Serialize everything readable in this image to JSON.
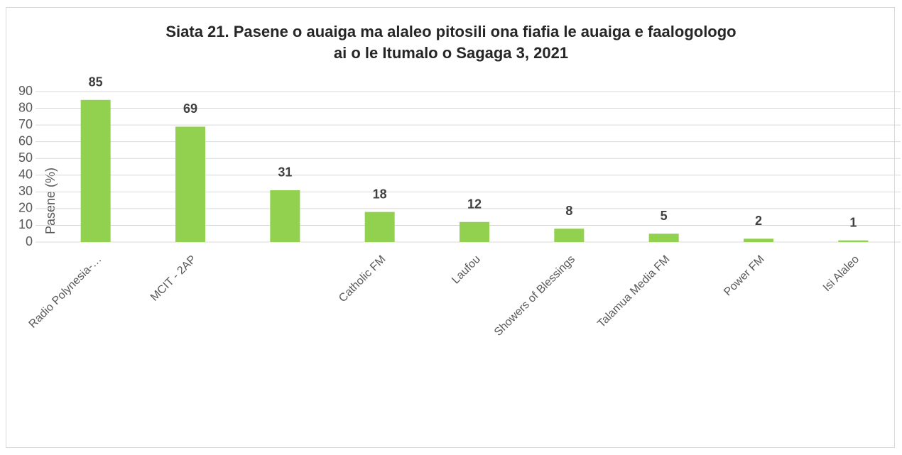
{
  "chart_data": {
    "type": "bar",
    "title": "Siata 21. Pasene o auaiga ma alaleo pitosili ona fiafia le auaiga e faalogologo ai o le Itumalo o Sagaga 3, 2021",
    "y_label": "Pasene (%)",
    "categories": [
      "Radio Polynesia-…",
      "MCIT - 2AP",
      null,
      "Catholic FM",
      "Laufou",
      "Showers of Blessings",
      "Talamua Media FM",
      "Power FM",
      "Isi Alaleo"
    ],
    "values": [
      85,
      69,
      31,
      18,
      12,
      8,
      5,
      2,
      1
    ],
    "color": "#92d050",
    "ylim": [
      0,
      90
    ],
    "yticks": [
      0,
      10,
      20,
      30,
      40,
      50,
      60,
      70,
      80,
      90
    ],
    "grid": true
  }
}
